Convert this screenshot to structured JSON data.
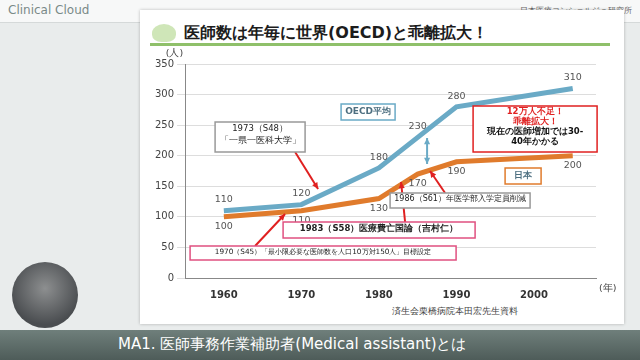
{
  "header": {
    "logo": "Clinical Cloud",
    "organization": "日本医療コンシェルジュ研究所"
  },
  "footer": "MA1. 医師事務作業補助者(Medical assistant)とは",
  "chart_data": {
    "type": "line",
    "title": "医師数は年毎に世界(OECD)と乖離拡大！",
    "y_label": "(人)",
    "x_label": "(年)",
    "x": [
      1960,
      1970,
      1980,
      1985,
      1990,
      2005
    ],
    "series": [
      {
        "name": "OECD平均",
        "color": "#6aaac6",
        "values": [
          110,
          120,
          180,
          230,
          280,
          310
        ]
      },
      {
        "name": "日本",
        "color": "#e07b2c",
        "values": [
          100,
          110,
          130,
          170,
          190,
          200
        ]
      }
    ],
    "xlim": [
      1955,
      2008
    ],
    "xticks": [
      1960,
      1970,
      1980,
      1990,
      2000
    ],
    "ylim": [
      0,
      350
    ],
    "yticks": [
      0,
      50,
      100,
      150,
      200,
      250,
      300,
      350
    ],
    "grid": true,
    "data_labels": true,
    "annotations": [
      "1973（S48）\n「一県一医科大学」",
      "12万人不足！\n乖離拡大！",
      "現在の医師増加では30-\n40年かかる",
      "1986（S61）年医学部入学定員削減",
      "1983（S58）医療費亡国論（吉村仁）",
      "1970（S45）「最小限必要な医師数を人口10万対150人」目標設定"
    ],
    "source": "済生会栗橋病院本田宏先生資料"
  }
}
